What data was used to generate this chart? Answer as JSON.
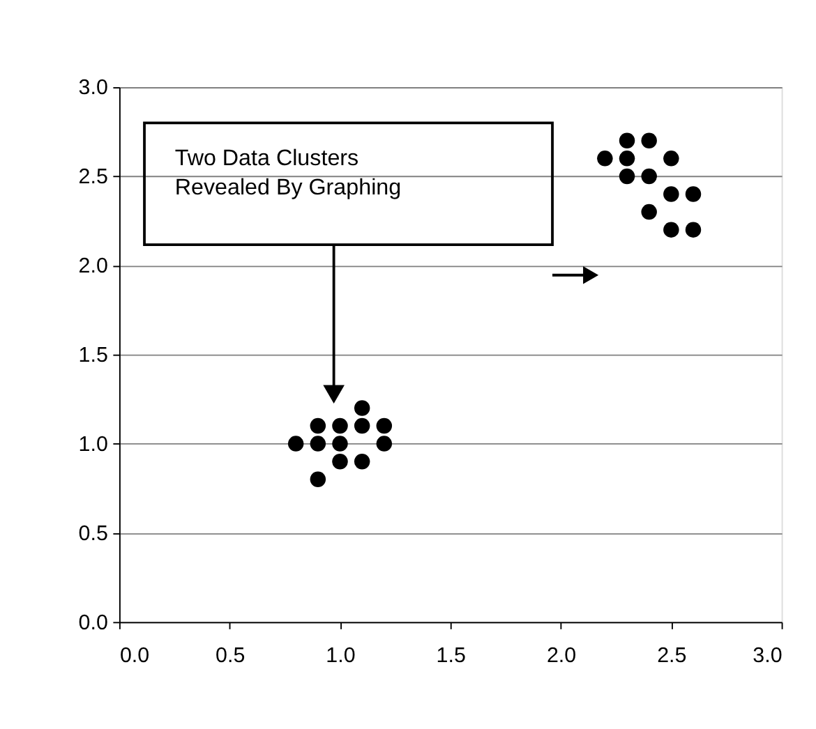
{
  "chart_data": {
    "type": "scatter",
    "x": [
      0.8,
      0.9,
      0.9,
      0.9,
      1.0,
      1.0,
      1.0,
      1.1,
      1.1,
      1.1,
      1.2,
      1.2,
      2.2,
      2.3,
      2.3,
      2.3,
      2.4,
      2.4,
      2.4,
      2.5,
      2.5,
      2.5,
      2.6,
      2.6
    ],
    "series": [
      {
        "color": "#000000",
        "values": [
          1.0,
          1.1,
          1.0,
          0.8,
          1.1,
          1.0,
          0.9,
          1.2,
          1.1,
          0.9,
          1.1,
          1.0,
          2.6,
          2.7,
          2.6,
          2.5,
          2.7,
          2.5,
          2.3,
          2.6,
          2.4,
          2.2,
          2.4,
          2.2
        ]
      }
    ],
    "xlim": [
      0,
      3
    ],
    "ylim": [
      0,
      3
    ],
    "xticks": [
      {
        "value": 0,
        "label": "0.0"
      },
      0.5,
      {
        "value": 1,
        "label": "1.0"
      },
      1.5,
      {
        "value": 2,
        "label": "2.0"
      },
      2.5,
      {
        "value": 3,
        "label": "3.0"
      }
    ],
    "yticks": [
      {
        "value": 0,
        "label": "0.0"
      },
      0.5,
      {
        "value": 1,
        "label": "1.0"
      },
      1.5,
      {
        "value": 2,
        "label": "2.0"
      },
      2.5,
      {
        "value": 3,
        "label": "3.0"
      }
    ],
    "grid": "y",
    "marker": "circle",
    "legend": false,
    "annotations": [
      "Two Data Clusters\nRevealed By Graphing"
    ]
  }
}
